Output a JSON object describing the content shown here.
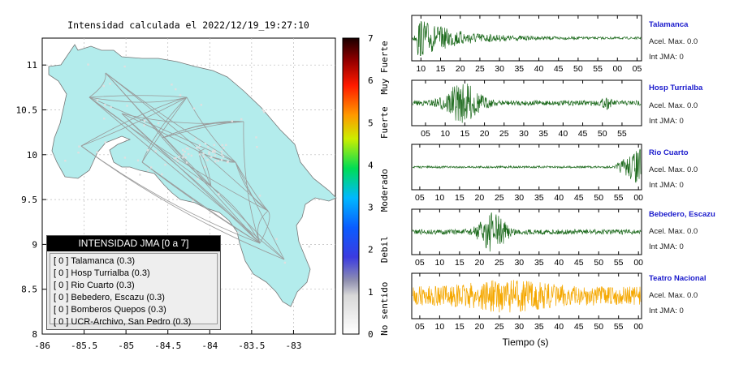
{
  "map": {
    "title": "Intensidad calculada el 2022/12/19_19:27:10",
    "x_ticks": [
      "-86",
      "-85.5",
      "-85",
      "-84.5",
      "-84",
      "-83.5",
      "-83"
    ],
    "y_ticks": [
      "11",
      "10.5",
      "10",
      "9.5",
      "9",
      "8.5",
      "8"
    ],
    "xlim": [
      -86,
      -82.5
    ],
    "ylim": [
      8,
      11.3
    ],
    "land_color": "#b3ecec",
    "legend": {
      "header": "INTENSIDAD JMA [0 a 7]",
      "rows": [
        "[ 0 ]  Talamanca (0.3)",
        "[ 0 ]  Hosp Turrialba (0.3)",
        "[ 0 ]  Rio Cuarto (0.3)",
        "[ 0 ]  Bebedero, Escazu (0.3)",
        "[ 0 ]  Bomberos Quepos (0.3)",
        "[ 0 ]  UCR-Archivo, San Pedro (0.3)"
      ]
    }
  },
  "colorbar": {
    "ticks": [
      "7",
      "6",
      "5",
      "4",
      "3",
      "2",
      "1",
      "0"
    ],
    "labels": [
      "Muy Fuerte",
      "Fuerte",
      "Moderado",
      "Debil",
      "No sentido"
    ]
  },
  "traces": {
    "xlabel": "Tiempo (s)",
    "panels": [
      {
        "name": "Talamanca",
        "acel": "Acel. Max. 0.0",
        "jma": "Int JMA: 0",
        "color": "#1e6b1e",
        "ticks": [
          "10",
          "15",
          "20",
          "25",
          "30",
          "35",
          "40",
          "45",
          "50",
          "55",
          "00",
          "05"
        ]
      },
      {
        "name": "Hosp Turrialba",
        "acel": "Acel. Max. 0.0",
        "jma": "Int JMA: 0",
        "color": "#1e6b1e",
        "ticks": [
          "05",
          "10",
          "15",
          "20",
          "25",
          "30",
          "35",
          "40",
          "45",
          "50",
          "55"
        ]
      },
      {
        "name": "Rio Cuarto",
        "acel": "Acel. Max. 0.0",
        "jma": "Int JMA: 0",
        "color": "#1e6b1e",
        "ticks": [
          "05",
          "10",
          "15",
          "20",
          "25",
          "30",
          "35",
          "40",
          "45",
          "50",
          "55",
          "00"
        ]
      },
      {
        "name": "Bebedero, Escazu",
        "acel": "Acel. Max. 0.0",
        "jma": "Int JMA: 0",
        "color": "#1e6b1e",
        "ticks": [
          "05",
          "10",
          "15",
          "20",
          "25",
          "30",
          "35",
          "40",
          "45",
          "50",
          "55",
          "00"
        ]
      },
      {
        "name": "Teatro Nacional",
        "acel": "Acel. Max. 0.0",
        "jma": "Int JMA: 0",
        "color": "#f5a800",
        "ticks": [
          "05",
          "10",
          "15",
          "20",
          "25",
          "30",
          "35",
          "40",
          "45",
          "50",
          "55",
          "00"
        ]
      }
    ]
  }
}
